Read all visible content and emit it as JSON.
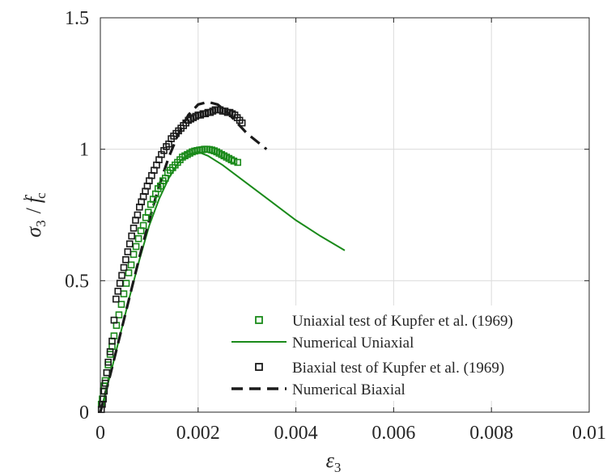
{
  "chart_data": {
    "type": "line",
    "xlabel": "ε",
    "xlabel_sub": "3",
    "ylabel": {
      "sigma": "σ",
      "sigma_sub": "3",
      "slash": "/",
      "f": "f",
      "f_sup": "'",
      "f_sub": "c"
    },
    "xlim": [
      0,
      0.01
    ],
    "ylim": [
      0,
      1.5
    ],
    "grid": true,
    "legend_position": "bottom-right",
    "xticks": [
      {
        "value": 0,
        "label": "0"
      },
      {
        "value": 0.002,
        "label": "0.002"
      },
      {
        "value": 0.004,
        "label": "0.004"
      },
      {
        "value": 0.006,
        "label": "0.006"
      },
      {
        "value": 0.008,
        "label": "0.008"
      },
      {
        "value": 0.01,
        "label": "0.01"
      }
    ],
    "yticks": [
      {
        "value": 0,
        "label": "0"
      },
      {
        "value": 0.5,
        "label": "0.5"
      },
      {
        "value": 1,
        "label": "1"
      },
      {
        "value": 1.5,
        "label": "1.5"
      }
    ],
    "series": [
      {
        "name": "Uniaxial test of Kupfer et al. (1969)",
        "style": "square-markers",
        "color": "#1a8a1a",
        "x": [
          2e-05,
          4e-05,
          6e-05,
          8e-05,
          0.0001,
          0.00013,
          0.00016,
          0.0002,
          0.00024,
          0.00028,
          0.00033,
          0.00038,
          0.00043,
          0.00048,
          0.00053,
          0.00058,
          0.00063,
          0.00068,
          0.00073,
          0.00078,
          0.00083,
          0.00088,
          0.00093,
          0.00098,
          0.00103,
          0.00108,
          0.00113,
          0.00118,
          0.00123,
          0.00128,
          0.00133,
          0.00138,
          0.00143,
          0.00148,
          0.00153,
          0.00158,
          0.00163,
          0.00168,
          0.00173,
          0.00178,
          0.00183,
          0.00188,
          0.00193,
          0.00198,
          0.00203,
          0.00208,
          0.00213,
          0.00218,
          0.00223,
          0.00228,
          0.00233,
          0.00238,
          0.00243,
          0.00248,
          0.00253,
          0.00258,
          0.00263,
          0.00268,
          0.00273,
          0.00281
        ],
        "y": [
          0.03,
          0.05,
          0.08,
          0.1,
          0.12,
          0.15,
          0.18,
          0.22,
          0.25,
          0.29,
          0.33,
          0.37,
          0.41,
          0.45,
          0.49,
          0.53,
          0.56,
          0.6,
          0.63,
          0.66,
          0.69,
          0.71,
          0.74,
          0.76,
          0.79,
          0.81,
          0.83,
          0.85,
          0.86,
          0.88,
          0.89,
          0.91,
          0.92,
          0.93,
          0.94,
          0.95,
          0.96,
          0.97,
          0.975,
          0.98,
          0.985,
          0.99,
          0.993,
          0.995,
          0.997,
          0.998,
          1.0,
          1.0,
          0.999,
          0.997,
          0.994,
          0.99,
          0.985,
          0.98,
          0.975,
          0.97,
          0.965,
          0.96,
          0.955,
          0.95
        ]
      },
      {
        "name": "Numerical Uniaxial",
        "style": "solid-line",
        "color": "#1a8a1a",
        "x": [
          0,
          0.0002,
          0.0004,
          0.0006,
          0.0008,
          0.001,
          0.0012,
          0.0014,
          0.0016,
          0.0018,
          0.002,
          0.0022,
          0.0025,
          0.003,
          0.0035,
          0.004,
          0.0045,
          0.005
        ],
        "y": [
          0,
          0.14,
          0.29,
          0.44,
          0.58,
          0.71,
          0.81,
          0.89,
          0.95,
          0.98,
          0.99,
          0.975,
          0.94,
          0.87,
          0.8,
          0.73,
          0.67,
          0.615
        ]
      },
      {
        "name": "Biaxial test of Kupfer et al. (1969)",
        "style": "square-markers",
        "color": "#1a1a1a",
        "x": [
          2e-05,
          4e-05,
          6e-05,
          8e-05,
          0.0001,
          0.00013,
          0.00016,
          0.0002,
          0.00024,
          0.00028,
          0.00032,
          0.00036,
          0.0004,
          0.00044,
          0.00048,
          0.00052,
          0.00056,
          0.0006,
          0.00064,
          0.00068,
          0.00072,
          0.00076,
          0.0008,
          0.00084,
          0.00088,
          0.00092,
          0.00096,
          0.001,
          0.00105,
          0.0011,
          0.00115,
          0.0012,
          0.00125,
          0.0013,
          0.00135,
          0.0014,
          0.00145,
          0.0015,
          0.00155,
          0.0016,
          0.00165,
          0.0017,
          0.00175,
          0.0018,
          0.00185,
          0.0019,
          0.00195,
          0.002,
          0.00205,
          0.0021,
          0.00215,
          0.0022,
          0.00225,
          0.0023,
          0.00235,
          0.0024,
          0.00245,
          0.0025,
          0.00255,
          0.0026,
          0.00265,
          0.0027,
          0.00275,
          0.0028,
          0.00285,
          0.0029
        ],
        "y": [
          0.01,
          0.03,
          0.05,
          0.08,
          0.11,
          0.15,
          0.19,
          0.23,
          0.27,
          0.35,
          0.43,
          0.46,
          0.49,
          0.52,
          0.55,
          0.58,
          0.61,
          0.64,
          0.67,
          0.7,
          0.73,
          0.75,
          0.78,
          0.8,
          0.82,
          0.84,
          0.86,
          0.88,
          0.9,
          0.92,
          0.94,
          0.96,
          0.98,
          0.995,
          1.01,
          1.02,
          1.04,
          1.05,
          1.06,
          1.07,
          1.08,
          1.09,
          1.1,
          1.11,
          1.115,
          1.12,
          1.125,
          1.13,
          1.13,
          1.135,
          1.135,
          1.14,
          1.14,
          1.145,
          1.15,
          1.15,
          1.15,
          1.145,
          1.145,
          1.14,
          1.14,
          1.135,
          1.13,
          1.12,
          1.11,
          1.1
        ]
      },
      {
        "name": "Numerical Biaxial",
        "style": "dashed-line",
        "color": "#1a1a1a",
        "x": [
          0,
          0.0002,
          0.0004,
          0.0006,
          0.0008,
          0.001,
          0.0012,
          0.0014,
          0.0016,
          0.0018,
          0.002,
          0.0022,
          0.0024,
          0.0026,
          0.0028,
          0.003,
          0.0032,
          0.0034
        ],
        "y": [
          0,
          0.14,
          0.29,
          0.44,
          0.59,
          0.73,
          0.86,
          0.97,
          1.06,
          1.13,
          1.17,
          1.18,
          1.17,
          1.14,
          1.1,
          1.06,
          1.03,
          1.0
        ]
      }
    ]
  }
}
